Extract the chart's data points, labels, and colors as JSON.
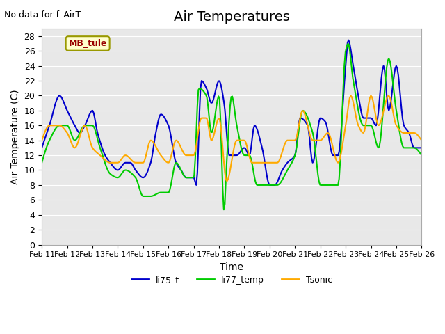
{
  "title": "Air Temperatures",
  "xlabel": "Time",
  "ylabel": "Air Temperature (C)",
  "note": "No data for f_AirT",
  "legend_label": "MB_tule",
  "ylim": [
    0,
    29
  ],
  "yticks": [
    0,
    2,
    4,
    6,
    8,
    10,
    12,
    14,
    16,
    18,
    20,
    22,
    24,
    26,
    28
  ],
  "xtick_labels": [
    "Feb 11",
    "Feb 12",
    "Feb 13",
    "Feb 14",
    "Feb 15",
    "Feb 16",
    "Feb 17",
    "Feb 18",
    "Feb 19",
    "Feb 20",
    "Feb 21",
    "Feb 22",
    "Feb 23",
    "Feb 24",
    "Feb 25",
    "Feb 26"
  ],
  "bg_color": "#e8e8e8",
  "title_fontsize": 14,
  "axis_fontsize": 10,
  "series": {
    "li75_t": {
      "color": "#0000cc",
      "linewidth": 1.5
    },
    "li77_temp": {
      "color": "#00cc00",
      "linewidth": 1.5
    },
    "Tsonic": {
      "color": "#ffaa00",
      "linewidth": 1.5
    }
  }
}
